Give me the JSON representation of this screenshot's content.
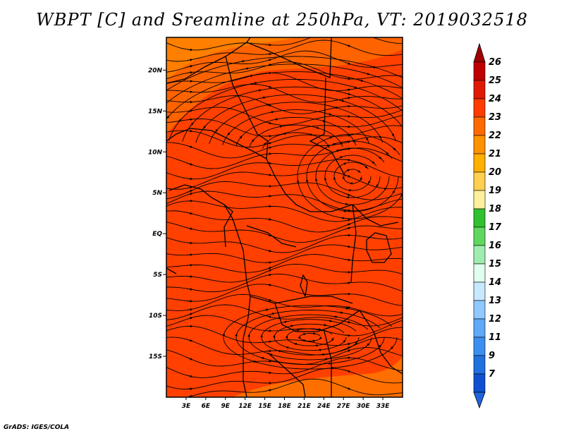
{
  "title": "WBPT [C] and Sreamline at 250hPa, VT: 2019032518",
  "credit": "GrADS: IGES/COLA",
  "map": {
    "lon_range": [
      0,
      36
    ],
    "lat_range": [
      -20,
      24
    ],
    "lat_ticks": [
      "20N",
      "15N",
      "10N",
      "5N",
      "EQ",
      "5S",
      "10S",
      "15S"
    ],
    "lat_tick_values": [
      20,
      15,
      10,
      5,
      0,
      -5,
      -10,
      -15
    ],
    "lon_ticks": [
      "3E",
      "6E",
      "9E",
      "12E",
      "15E",
      "18E",
      "21E",
      "24E",
      "27E",
      "30E",
      "33E"
    ],
    "lon_tick_values": [
      3,
      6,
      9,
      12,
      15,
      18,
      21,
      24,
      27,
      30,
      33
    ],
    "field_color": "#ff4000",
    "band_color": "#ff6a00"
  },
  "colorbar": {
    "labels": [
      "26",
      "25",
      "24",
      "23",
      "22",
      "21",
      "20",
      "19",
      "18",
      "17",
      "16",
      "15",
      "14",
      "13",
      "12",
      "11",
      "9",
      "7"
    ],
    "colors": [
      "#c00000",
      "#e01a00",
      "#ff3c00",
      "#ff6a00",
      "#ff9200",
      "#ffb000",
      "#ffd050",
      "#fff0a0",
      "#30c030",
      "#60d860",
      "#a0ecb0",
      "#e0fff0",
      "#c8e8ff",
      "#90c8ff",
      "#60a8f8",
      "#3c8ef0",
      "#2070e0",
      "#1050d0"
    ],
    "top_color": "#a00000",
    "bottom_color": "#1e64dc"
  }
}
